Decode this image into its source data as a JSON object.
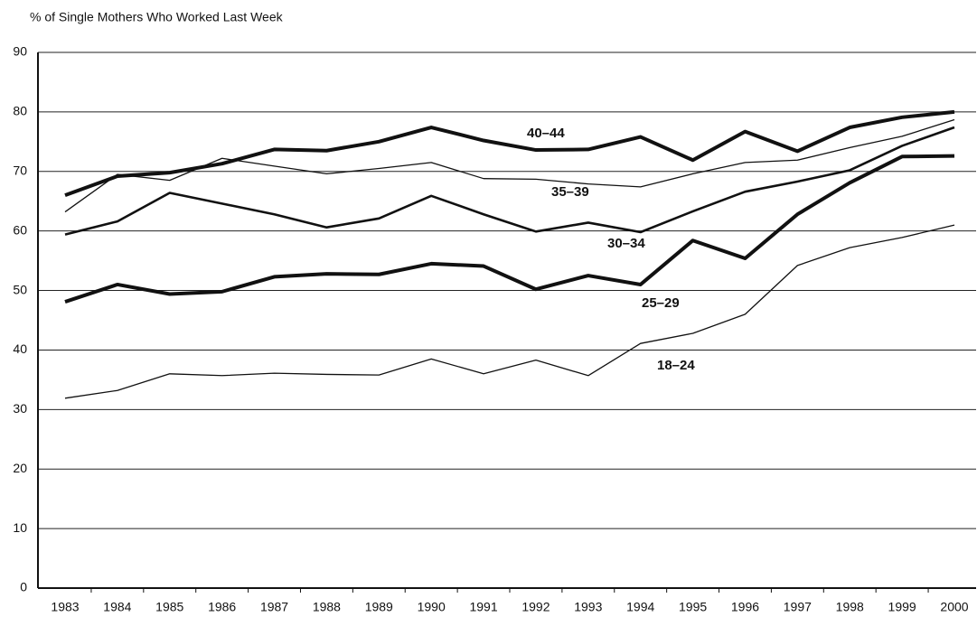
{
  "chart_data": {
    "type": "line",
    "title": "% of Single Mothers Who Worked Last Week",
    "categories": [
      "1983",
      "1984",
      "1985",
      "1986",
      "1987",
      "1988",
      "1989",
      "1990",
      "1991",
      "1992",
      "1993",
      "1994",
      "1995",
      "1996",
      "1997",
      "1998",
      "1999",
      "2000"
    ],
    "series": [
      {
        "name": "40–44",
        "color": "#111111",
        "values": [
          66,
          69.2,
          69.8,
          71.3,
          73.7,
          73.5,
          75,
          77.4,
          75.2,
          73.6,
          73.7,
          75.8,
          71.9,
          76.7,
          73.4,
          77.4,
          79.1,
          80
        ]
      },
      {
        "name": "35–39",
        "color": "#111111",
        "values": [
          63.2,
          69.5,
          68.5,
          72.2,
          70.9,
          69.6,
          70.5,
          71.5,
          68.8,
          68.7,
          67.9,
          67.4,
          69.6,
          71.5,
          71.9,
          74,
          75.9,
          78.7
        ]
      },
      {
        "name": "30–34",
        "color": "#111111",
        "values": [
          59.4,
          61.6,
          66.4,
          64.6,
          62.8,
          60.6,
          62.1,
          65.9,
          62.8,
          59.9,
          61.4,
          59.8,
          63.3,
          66.6,
          68.3,
          70.2,
          74.3,
          77.4
        ]
      },
      {
        "name": "25–29",
        "color": "#111111",
        "values": [
          48.1,
          51,
          49.4,
          49.8,
          52.3,
          52.8,
          52.7,
          54.5,
          54.1,
          50.2,
          52.5,
          51,
          58.4,
          55.4,
          62.8,
          68.1,
          72.5,
          72.6
        ]
      },
      {
        "name": "18–24",
        "color": "#111111",
        "values": [
          31.9,
          33.2,
          36,
          35.7,
          36.1,
          35.9,
          35.8,
          38.5,
          36,
          38.3,
          35.7,
          41.1,
          42.8,
          46,
          54.2,
          57.2,
          58.9,
          61
        ]
      }
    ],
    "ylim": [
      0,
      90
    ],
    "yticks": [
      0,
      10,
      20,
      30,
      40,
      50,
      60,
      70,
      80,
      90
    ],
    "grid": true
  }
}
